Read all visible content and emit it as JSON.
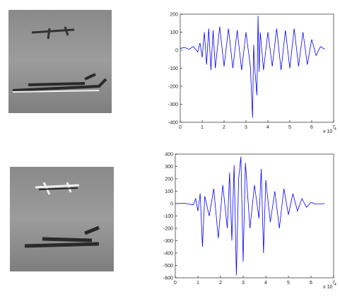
{
  "chart_data": [
    {
      "type": "line",
      "color": "#0000ff",
      "xlim": [
        0,
        7
      ],
      "xticks": [
        0,
        1,
        2,
        3,
        4,
        5,
        6,
        7
      ],
      "ylim": [
        -400,
        200
      ],
      "yticks": [
        -400,
        -300,
        -200,
        -100,
        0,
        100,
        200
      ],
      "x_multiplier": "x 10",
      "x_multiplier_exp": "4",
      "x": [
        0,
        0.2,
        0.4,
        0.6,
        0.8,
        0.9,
        1.0,
        1.1,
        1.2,
        1.3,
        1.4,
        1.5,
        1.6,
        1.8,
        2.0,
        2.2,
        2.4,
        2.6,
        2.8,
        3.0,
        3.2,
        3.3,
        3.35,
        3.4,
        3.5,
        3.55,
        3.6,
        3.65,
        3.8,
        4.0,
        4.2,
        4.4,
        4.6,
        4.8,
        5.0,
        5.2,
        5.4,
        5.6,
        5.8,
        6.0,
        6.2,
        6.4,
        6.6
      ],
      "values": [
        10,
        15,
        5,
        20,
        -10,
        40,
        -40,
        100,
        -80,
        120,
        -110,
        110,
        -100,
        130,
        -90,
        120,
        -100,
        110,
        -110,
        100,
        -90,
        -375,
        30,
        -100,
        -250,
        190,
        -120,
        100,
        -110,
        100,
        -90,
        120,
        -110,
        110,
        -100,
        120,
        -90,
        100,
        -80,
        60,
        -30,
        20,
        5
      ]
    },
    {
      "type": "line",
      "color": "#0000ff",
      "xlim": [
        0,
        7
      ],
      "xticks": [
        0,
        1,
        2,
        3,
        4,
        5,
        6,
        7
      ],
      "ylim": [
        -600,
        400
      ],
      "yticks": [
        -600,
        -500,
        -400,
        -300,
        -200,
        -100,
        0,
        100,
        200,
        300,
        400
      ],
      "x_multiplier": "x 10",
      "x_multiplier_exp": "4",
      "x": [
        0,
        0.4,
        0.8,
        0.9,
        1.0,
        1.1,
        1.2,
        1.3,
        1.5,
        1.7,
        1.9,
        2.1,
        2.3,
        2.4,
        2.5,
        2.6,
        2.7,
        2.8,
        2.9,
        3.0,
        3.1,
        3.3,
        3.5,
        3.7,
        3.8,
        3.9,
        4.0,
        4.2,
        4.4,
        4.6,
        4.8,
        5.0,
        5.2,
        5.4,
        5.6,
        5.8,
        6.0,
        6.2,
        6.6
      ],
      "values": [
        0,
        2,
        -10,
        40,
        -60,
        80,
        -350,
        60,
        -100,
        120,
        -280,
        150,
        -200,
        250,
        -300,
        310,
        -580,
        200,
        380,
        -470,
        330,
        -200,
        150,
        -120,
        280,
        -400,
        190,
        -150,
        100,
        -200,
        120,
        -90,
        80,
        -60,
        40,
        -30,
        10,
        -5,
        0
      ]
    }
  ]
}
